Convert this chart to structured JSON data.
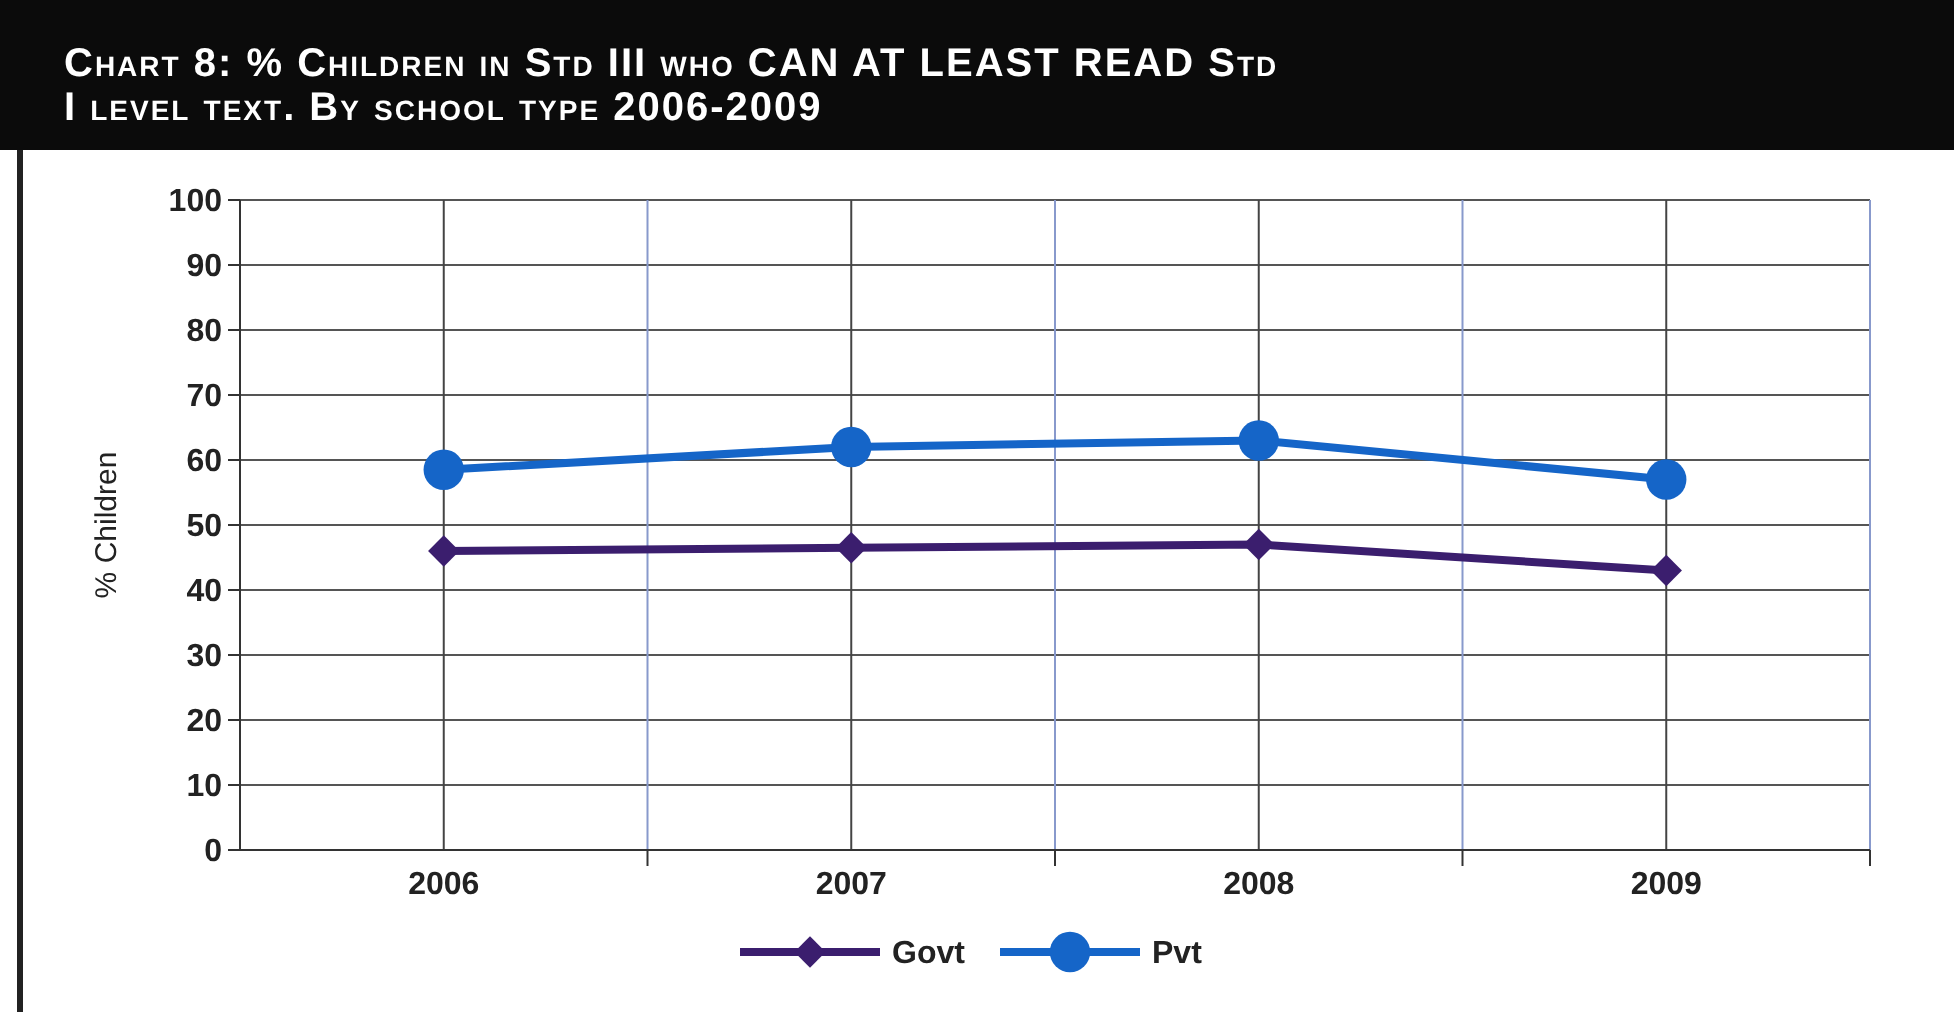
{
  "chart_data": {
    "type": "line",
    "title": "Chart 8: % Children in Std III who CAN AT LEAST READ Std I level text. By school type 2006-2009",
    "ylabel": "% Children",
    "categories": [
      "2006",
      "2007",
      "2008",
      "2009"
    ],
    "series": [
      {
        "name": "Govt",
        "color": "#3b1e6e",
        "values": [
          46,
          46.5,
          47,
          43
        ],
        "marker": "diamond"
      },
      {
        "name": "Pvt",
        "color": "#1565c8",
        "values": [
          58.5,
          62,
          63,
          57
        ],
        "marker": "circle"
      }
    ],
    "ylim": [
      0,
      100
    ],
    "yticks": [
      0,
      10,
      20,
      30,
      40,
      50,
      60,
      70,
      80,
      90,
      100
    ],
    "grid": true,
    "legend": "bottom",
    "line_style": "solid"
  }
}
